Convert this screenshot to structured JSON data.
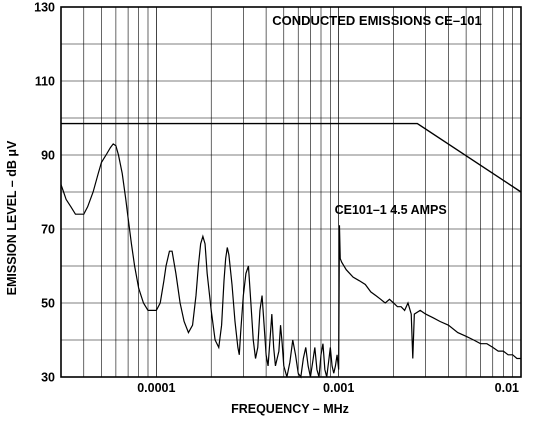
{
  "chart_data": {
    "type": "line",
    "title": "CONDUCTED EMISSIONS  CE–101",
    "xlabel": "FREQUENCY – MHz",
    "ylabel": "EMISSION LEVEL – dB μV",
    "xscale": "log",
    "xlim": [
      3e-05,
      0.01
    ],
    "ylim": [
      30,
      130
    ],
    "grid": true,
    "x_ticks": [
      {
        "value": 0.0001,
        "label": "0.0001"
      },
      {
        "value": 0.001,
        "label": "0.001"
      },
      {
        "value": 0.01,
        "label": "0.01"
      }
    ],
    "y_ticks": [
      {
        "value": 30,
        "label": "30"
      },
      {
        "value": 50,
        "label": "50"
      },
      {
        "value": 70,
        "label": "70"
      },
      {
        "value": 90,
        "label": "90"
      },
      {
        "value": 110,
        "label": "110"
      },
      {
        "value": 130,
        "label": "130"
      }
    ],
    "annotations": [
      {
        "text": "CE101–1   4.5 AMPS",
        "x": 0.00095,
        "y": 74
      }
    ],
    "series": [
      {
        "role": "limit",
        "points": [
          [
            3e-05,
            98.5
          ],
          [
            0.0027,
            98.5
          ],
          [
            0.01,
            80
          ]
        ]
      },
      {
        "role": "measured",
        "points": [
          [
            3e-05,
            82
          ],
          [
            3.1e-05,
            80
          ],
          [
            3.2e-05,
            78
          ],
          [
            3.4e-05,
            76
          ],
          [
            3.6e-05,
            74
          ],
          [
            3.8e-05,
            74
          ],
          [
            4e-05,
            74
          ],
          [
            4.2e-05,
            76
          ],
          [
            4.5e-05,
            80
          ],
          [
            4.8e-05,
            85
          ],
          [
            5e-05,
            88
          ],
          [
            5.3e-05,
            90
          ],
          [
            5.6e-05,
            92
          ],
          [
            5.8e-05,
            93
          ],
          [
            6e-05,
            92.5
          ],
          [
            6.2e-05,
            90
          ],
          [
            6.5e-05,
            85
          ],
          [
            6.8e-05,
            78
          ],
          [
            7e-05,
            73
          ],
          [
            7.3e-05,
            66
          ],
          [
            7.6e-05,
            60
          ],
          [
            8e-05,
            54
          ],
          [
            8.5e-05,
            50
          ],
          [
            9e-05,
            48
          ],
          [
            9.5e-05,
            48
          ],
          [
            0.0001,
            48
          ],
          [
            0.000105,
            50
          ],
          [
            0.00011,
            56
          ],
          [
            0.000113,
            60
          ],
          [
            0.000118,
            64
          ],
          [
            0.000122,
            64
          ],
          [
            0.000128,
            58
          ],
          [
            0.000135,
            50
          ],
          [
            0.000142,
            45
          ],
          [
            0.00015,
            42
          ],
          [
            0.000158,
            44
          ],
          [
            0.000165,
            52
          ],
          [
            0.00017,
            60
          ],
          [
            0.000175,
            66
          ],
          [
            0.00018,
            68
          ],
          [
            0.000185,
            66
          ],
          [
            0.00019,
            58
          ],
          [
            0.0002,
            48
          ],
          [
            0.00021,
            40
          ],
          [
            0.00022,
            38
          ],
          [
            0.000228,
            44
          ],
          [
            0.000235,
            56
          ],
          [
            0.00024,
            62
          ],
          [
            0.000245,
            65
          ],
          [
            0.00025,
            63
          ],
          [
            0.00026,
            55
          ],
          [
            0.00027,
            45
          ],
          [
            0.00028,
            38
          ],
          [
            0.000285,
            36
          ],
          [
            0.00029,
            42
          ],
          [
            0.0003,
            52
          ],
          [
            0.00031,
            58
          ],
          [
            0.00032,
            60
          ],
          [
            0.00033,
            50
          ],
          [
            0.00034,
            40
          ],
          [
            0.00035,
            35
          ],
          [
            0.00036,
            38
          ],
          [
            0.00037,
            48
          ],
          [
            0.00038,
            52
          ],
          [
            0.00039,
            44
          ],
          [
            0.0004,
            36
          ],
          [
            0.00041,
            33
          ],
          [
            0.00042,
            40
          ],
          [
            0.00043,
            47
          ],
          [
            0.00044,
            38
          ],
          [
            0.00045,
            33
          ],
          [
            0.00047,
            37
          ],
          [
            0.00048,
            44
          ],
          [
            0.00049,
            39
          ],
          [
            0.0005,
            33
          ],
          [
            0.00052,
            30
          ],
          [
            0.00054,
            34
          ],
          [
            0.00056,
            40
          ],
          [
            0.00058,
            36
          ],
          [
            0.0006,
            31
          ],
          [
            0.00062,
            30
          ],
          [
            0.00064,
            35
          ],
          [
            0.00066,
            38
          ],
          [
            0.00068,
            33
          ],
          [
            0.0007,
            30
          ],
          [
            0.00072,
            34
          ],
          [
            0.00074,
            38
          ],
          [
            0.00076,
            32
          ],
          [
            0.00078,
            30
          ],
          [
            0.0008,
            36
          ],
          [
            0.00082,
            39
          ],
          [
            0.00084,
            32
          ],
          [
            0.00086,
            30
          ],
          [
            0.00088,
            34
          ],
          [
            0.0009,
            38
          ],
          [
            0.00092,
            33
          ],
          [
            0.00094,
            31
          ],
          [
            0.00096,
            33
          ],
          [
            0.00098,
            36
          ],
          [
            0.001,
            32
          ],
          [
            0.00101,
            71
          ],
          [
            0.00102,
            62
          ],
          [
            0.00104,
            61
          ],
          [
            0.0011,
            59
          ],
          [
            0.0012,
            57
          ],
          [
            0.0013,
            56
          ],
          [
            0.0014,
            55
          ],
          [
            0.0015,
            53
          ],
          [
            0.0016,
            52
          ],
          [
            0.0017,
            51
          ],
          [
            0.0018,
            50
          ],
          [
            0.0019,
            51
          ],
          [
            0.002,
            50
          ],
          [
            0.0021,
            49
          ],
          [
            0.0022,
            49
          ],
          [
            0.0023,
            48
          ],
          [
            0.0024,
            50
          ],
          [
            0.0025,
            47
          ],
          [
            0.00255,
            35
          ],
          [
            0.0026,
            47
          ],
          [
            0.0028,
            48
          ],
          [
            0.003,
            47
          ],
          [
            0.0033,
            46
          ],
          [
            0.0036,
            45
          ],
          [
            0.004,
            44
          ],
          [
            0.0045,
            42
          ],
          [
            0.005,
            41
          ],
          [
            0.0055,
            40
          ],
          [
            0.006,
            39
          ],
          [
            0.0065,
            39
          ],
          [
            0.007,
            38
          ],
          [
            0.0075,
            37
          ],
          [
            0.008,
            37
          ],
          [
            0.0085,
            36
          ],
          [
            0.009,
            36
          ],
          [
            0.0095,
            35
          ],
          [
            0.01,
            35
          ]
        ]
      }
    ]
  }
}
